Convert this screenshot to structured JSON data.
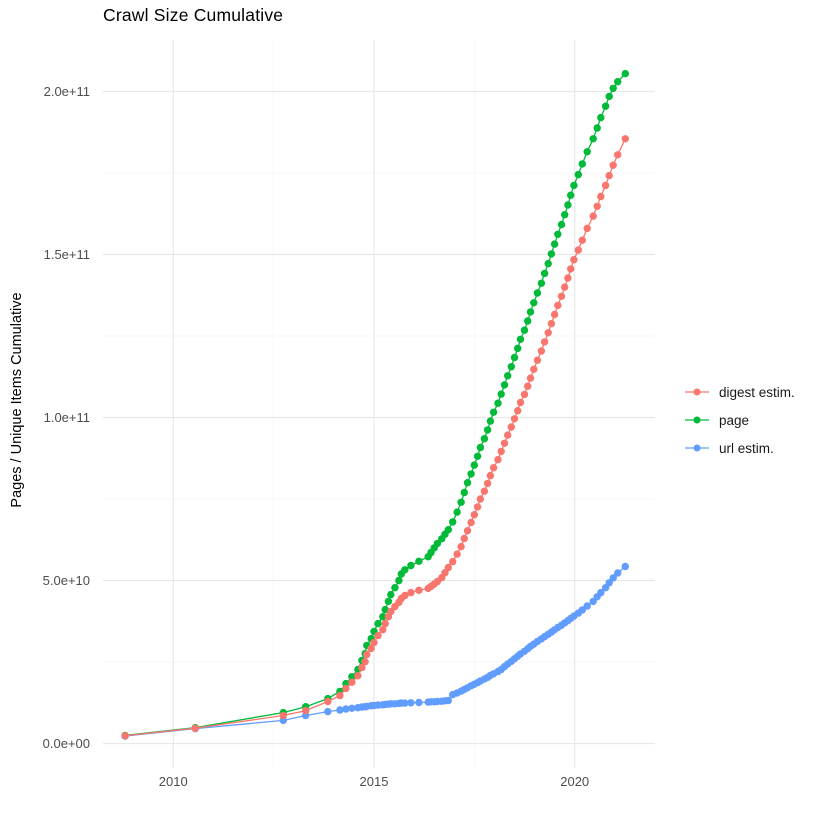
{
  "page": {
    "background": "#ffffff"
  },
  "chart_data": {
    "type": "scatter",
    "title": "Crawl Size Cumulative",
    "ylabel": "Pages / Unique Items Cumulative",
    "xlabel": "",
    "y_value_unit": "1e9 items (values below are billions; axis labels shown in scientific notation)",
    "x_axis": {
      "range": [
        2008.25,
        2022.0
      ],
      "ticks": [
        2010,
        2015,
        2020
      ],
      "labels": [
        "2010",
        "2015",
        "2020"
      ],
      "minor": [
        2012.5,
        2017.5
      ]
    },
    "y_axis": {
      "range": [
        -7.5,
        215.8
      ],
      "ticks": [
        0,
        50,
        100,
        150,
        200
      ],
      "labels": [
        "0.0e+00",
        "5.0e+10",
        "1.0e+11",
        "1.5e+11",
        "2.0e+11"
      ],
      "minor": [
        25,
        75,
        125,
        175
      ]
    },
    "grid": {
      "show": true,
      "major_color": "#e8e8e8",
      "minor_color": "#f5f5f5"
    },
    "legend_position": "right",
    "draw_order": [
      1,
      2,
      0
    ],
    "point_radius": 3.7,
    "x_years": [
      2008.8,
      2010.55,
      2012.74,
      2013.3,
      2013.85,
      2014.15,
      2014.3,
      2014.45,
      2014.6,
      2014.7,
      2014.78,
      2014.82,
      2014.93,
      2015.0,
      2015.1,
      2015.22,
      2015.28,
      2015.36,
      2015.42,
      2015.52,
      2015.62,
      2015.68,
      2015.77,
      2015.92,
      2016.12,
      2016.35,
      2016.42,
      2016.5,
      2016.58,
      2016.69,
      2016.77,
      2016.85,
      2016.96,
      2017.07,
      2017.17,
      2017.25,
      2017.33,
      2017.42,
      2017.5,
      2017.58,
      2017.65,
      2017.75,
      2017.83,
      2017.9,
      2017.98,
      2018.09,
      2018.17,
      2018.25,
      2018.33,
      2018.42,
      2018.5,
      2018.58,
      2018.65,
      2018.75,
      2018.83,
      2018.9,
      2018.98,
      2019.07,
      2019.17,
      2019.25,
      2019.34,
      2019.42,
      2019.5,
      2019.58,
      2019.67,
      2019.75,
      2019.83,
      2019.9,
      2019.98,
      2020.09,
      2020.19,
      2020.31,
      2020.46,
      2020.56,
      2020.65,
      2020.77,
      2020.86,
      2020.96,
      2021.07,
      2021.26
    ],
    "series": [
      {
        "name": "digest estim.",
        "color": "#F8766D",
        "values": [
          2.4,
          4.7,
          8.6,
          10.1,
          12.9,
          14.7,
          16.9,
          18.8,
          20.8,
          23.3,
          25.1,
          27.3,
          29.2,
          31.0,
          33.1,
          34.9,
          36.8,
          38.9,
          40.5,
          42.0,
          43.3,
          44.5,
          45.4,
          46.3,
          47.0,
          47.6,
          48.2,
          48.9,
          49.7,
          50.9,
          52.4,
          54.0,
          55.8,
          58.1,
          60.4,
          62.9,
          65.3,
          67.8,
          70.2,
          72.6,
          75.0,
          77.4,
          79.8,
          82.2,
          84.6,
          87.1,
          89.6,
          92.1,
          94.6,
          97.1,
          99.6,
          102.1,
          104.6,
          107.1,
          109.6,
          112.1,
          114.8,
          117.6,
          120.4,
          123.2,
          126.0,
          128.8,
          131.6,
          134.4,
          137.2,
          140.0,
          142.8,
          145.6,
          148.4,
          151.4,
          154.4,
          158.0,
          161.8,
          164.8,
          167.8,
          171.2,
          174.2,
          177.4,
          180.6,
          185.5
        ]
      },
      {
        "name": "page",
        "color": "#00BA38",
        "values": [
          2.5,
          4.9,
          9.5,
          11.3,
          13.8,
          16.0,
          18.4,
          20.5,
          22.7,
          25.5,
          27.6,
          30.1,
          32.2,
          34.4,
          36.8,
          38.9,
          41.1,
          43.6,
          45.7,
          47.8,
          50.0,
          52.0,
          53.3,
          54.6,
          55.9,
          57.3,
          58.6,
          60.0,
          61.4,
          62.8,
          64.2,
          65.6,
          68.0,
          71.0,
          74.0,
          77.0,
          80.0,
          82.7,
          85.4,
          88.1,
          90.8,
          93.5,
          96.2,
          98.9,
          101.6,
          104.4,
          107.2,
          110.0,
          112.8,
          115.6,
          118.4,
          121.2,
          124.0,
          126.8,
          129.6,
          132.4,
          135.2,
          138.2,
          141.2,
          144.2,
          147.2,
          150.2,
          153.2,
          156.2,
          159.2,
          162.2,
          165.2,
          168.2,
          171.2,
          174.5,
          177.8,
          181.5,
          185.5,
          188.8,
          192.0,
          195.5,
          198.5,
          201.0,
          203.0,
          205.5
        ]
      },
      {
        "name": "url estim.",
        "color": "#619CFF",
        "values": [
          2.3,
          4.6,
          7.1,
          8.6,
          9.8,
          10.3,
          10.6,
          10.8,
          11.0,
          11.2,
          11.3,
          11.4,
          11.6,
          11.7,
          11.8,
          11.9,
          12.0,
          12.1,
          12.2,
          12.2,
          12.3,
          12.4,
          12.4,
          12.5,
          12.6,
          12.7,
          12.8,
          12.8,
          12.9,
          13.0,
          13.1,
          13.2,
          15.0,
          15.5,
          16.1,
          16.6,
          17.1,
          17.7,
          18.2,
          18.7,
          19.2,
          19.8,
          20.3,
          20.9,
          21.4,
          22.1,
          22.7,
          23.6,
          24.4,
          25.2,
          26.0,
          26.8,
          27.5,
          28.3,
          29.1,
          29.8,
          30.5,
          31.3,
          32.1,
          32.8,
          33.5,
          34.2,
          34.9,
          35.6,
          36.3,
          37.0,
          37.7,
          38.4,
          39.1,
          40.0,
          41.0,
          42.2,
          43.6,
          45.0,
          46.3,
          47.8,
          49.3,
          50.8,
          52.3,
          54.3
        ]
      }
    ]
  }
}
